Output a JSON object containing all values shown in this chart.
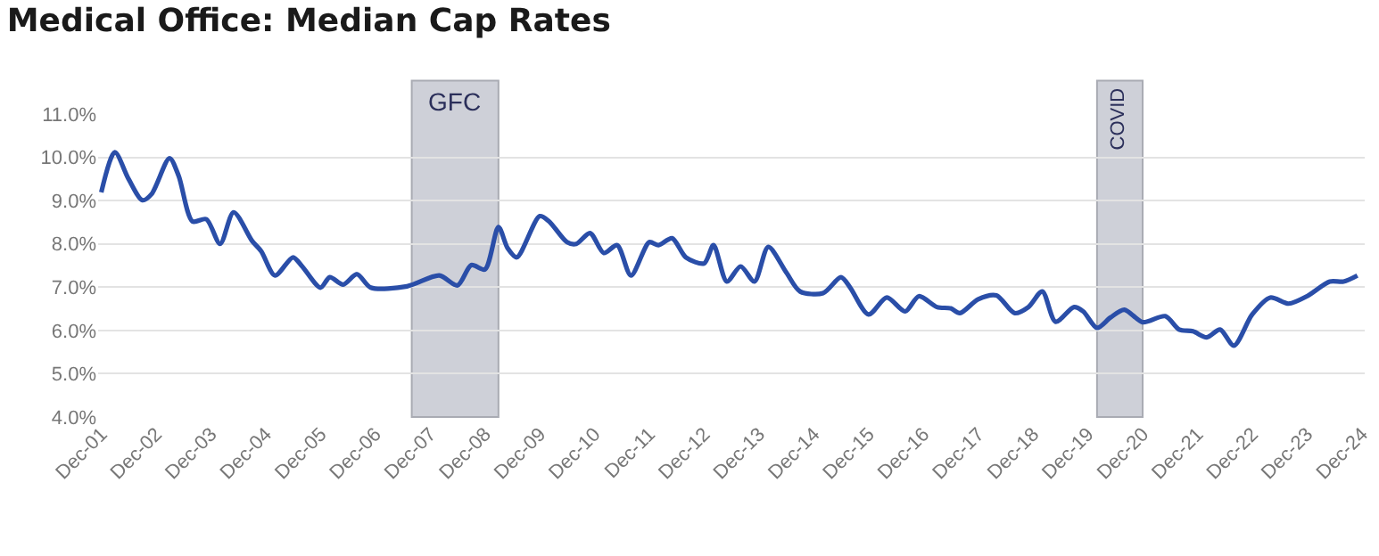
{
  "chart_data": {
    "type": "line",
    "title": "Medical Office: Median Cap Rates",
    "x": [
      "2001-12",
      "2002-03",
      "2002-06",
      "2002-09",
      "2002-11",
      "2003-03",
      "2003-05",
      "2003-08",
      "2003-11",
      "2004-02",
      "2004-05",
      "2004-09",
      "2004-11",
      "2005-02",
      "2005-06",
      "2005-08",
      "2005-12",
      "2006-02",
      "2006-05",
      "2006-08",
      "2006-11",
      "2007-07",
      "2008-02",
      "2008-06",
      "2008-09",
      "2008-12",
      "2009-03",
      "2009-05",
      "2009-07",
      "2009-12",
      "2010-02",
      "2010-06",
      "2010-08",
      "2010-11",
      "2011-02",
      "2011-05",
      "2011-08",
      "2011-12",
      "2012-02",
      "2012-05",
      "2012-08",
      "2012-12",
      "2013-02",
      "2013-05",
      "2013-08",
      "2013-11",
      "2014-02",
      "2014-06",
      "2014-09",
      "2015-02",
      "2015-06",
      "2015-08",
      "2015-12",
      "2016-04",
      "2016-08",
      "2016-11",
      "2017-03",
      "2017-06",
      "2017-08",
      "2017-12",
      "2018-04",
      "2018-08",
      "2018-11",
      "2019-02",
      "2019-05",
      "2019-09",
      "2019-11",
      "2020-02",
      "2020-05",
      "2020-08",
      "2020-12",
      "2021-05",
      "2021-08",
      "2021-11",
      "2022-02",
      "2022-05",
      "2022-08",
      "2022-12",
      "2023-04",
      "2023-08",
      "2023-12",
      "2024-05",
      "2024-08",
      "2024-11"
    ],
    "series": [
      {
        "color": "#2a4ea8",
        "values": [
          9.19,
          10.12,
          9.5,
          9.01,
          9.15,
          9.98,
          9.57,
          8.52,
          8.57,
          8.0,
          8.73,
          8.07,
          7.83,
          7.27,
          7.69,
          7.48,
          6.99,
          7.23,
          7.06,
          7.3,
          6.99,
          7.02,
          7.27,
          7.04,
          7.51,
          7.41,
          8.39,
          7.9,
          7.69,
          8.64,
          8.52,
          8.04,
          8.0,
          8.25,
          7.79,
          7.97,
          7.27,
          8.04,
          7.97,
          8.13,
          7.69,
          7.55,
          7.97,
          7.13,
          7.48,
          7.13,
          7.93,
          7.34,
          6.9,
          6.86,
          7.23,
          6.99,
          6.37,
          6.76,
          6.44,
          6.79,
          6.54,
          6.51,
          6.4,
          6.72,
          6.81,
          6.4,
          6.54,
          6.9,
          6.2,
          6.54,
          6.44,
          6.06,
          6.3,
          6.48,
          6.19,
          6.33,
          6.02,
          5.98,
          5.84,
          6.02,
          5.65,
          6.37,
          6.76,
          6.62,
          6.79,
          7.13,
          7.13,
          7.27
        ]
      }
    ],
    "xlim": [
      "2001-11-10",
      "2024-12-20"
    ],
    "xticks": [
      {
        "value": "2001-12",
        "label": "Dec-01"
      },
      {
        "value": "2002-12",
        "label": "Dec-02"
      },
      {
        "value": "2003-12",
        "label": "Dec-03"
      },
      {
        "value": "2004-12",
        "label": "Dec-04"
      },
      {
        "value": "2005-12",
        "label": "Dec-05"
      },
      {
        "value": "2006-12",
        "label": "Dec-06"
      },
      {
        "value": "2007-12",
        "label": "Dec-07"
      },
      {
        "value": "2008-12",
        "label": "Dec-08"
      },
      {
        "value": "2009-12",
        "label": "Dec-09"
      },
      {
        "value": "2010-12",
        "label": "Dec-10"
      },
      {
        "value": "2011-12",
        "label": "Dec-11"
      },
      {
        "value": "2012-12",
        "label": "Dec-12"
      },
      {
        "value": "2013-12",
        "label": "Dec-13"
      },
      {
        "value": "2014-12",
        "label": "Dec-14"
      },
      {
        "value": "2015-12",
        "label": "Dec-15"
      },
      {
        "value": "2016-12",
        "label": "Dec-16"
      },
      {
        "value": "2017-12",
        "label": "Dec-17"
      },
      {
        "value": "2018-12",
        "label": "Dec-18"
      },
      {
        "value": "2019-12",
        "label": "Dec-19"
      },
      {
        "value": "2020-12",
        "label": "Dec-20"
      },
      {
        "value": "2021-12",
        "label": "Dec-21"
      },
      {
        "value": "2022-12",
        "label": "Dec-22"
      },
      {
        "value": "2023-12",
        "label": "Dec-23"
      },
      {
        "value": "2024-12",
        "label": "Dec-24"
      }
    ],
    "ylim": [
      4,
      11
    ],
    "yticks": [
      {
        "value": 4,
        "label": "4.0%"
      },
      {
        "value": 5,
        "label": "5.0%"
      },
      {
        "value": 6,
        "label": "6.0%"
      },
      {
        "value": 7,
        "label": "7.0%"
      },
      {
        "value": 8,
        "label": "8.0%"
      },
      {
        "value": 9,
        "label": "9.0%"
      },
      {
        "value": 10,
        "label": "10.0%"
      },
      {
        "value": 11,
        "label": "11.0%"
      }
    ],
    "bands": [
      {
        "axis": "x",
        "from": "2007-08",
        "to": "2009-03",
        "label": "GFC",
        "color": "#ced0d8"
      },
      {
        "axis": "x",
        "from": "2020-02",
        "to": "2020-12",
        "label": "COVID",
        "color": "#ced0d8"
      }
    ],
    "grid": "y",
    "marker": "none",
    "line_style": "solid"
  }
}
